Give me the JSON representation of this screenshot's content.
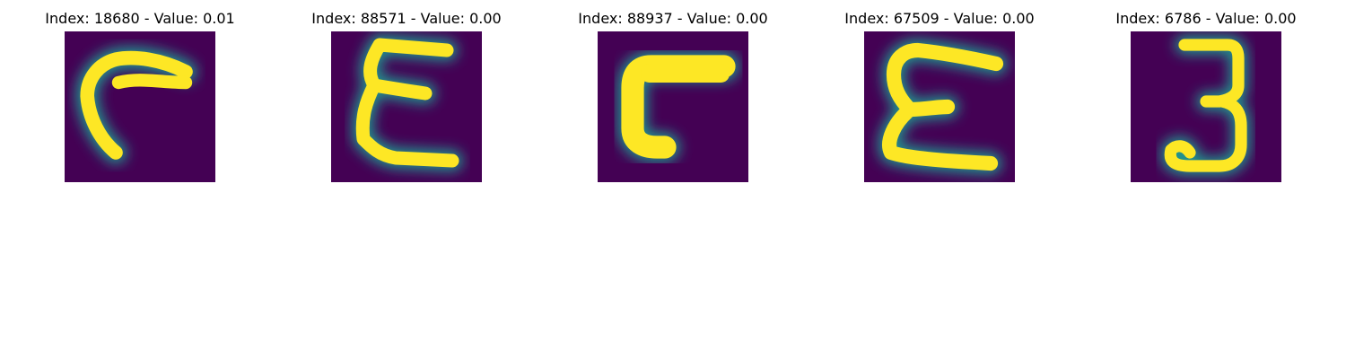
{
  "figure": {
    "background_color": "#440154",
    "foreground_color": "#fde725",
    "panels": [
      {
        "title": "Index: 18680 - Value: 0.01",
        "glyph": "curved stroke"
      },
      {
        "title": "Index: 88571 - Value: 0.00",
        "glyph": "epsilon-like"
      },
      {
        "title": "Index: 88937 - Value: 0.00",
        "glyph": "L-shape"
      },
      {
        "title": "Index: 67509 - Value: 0.00",
        "glyph": "E-like"
      },
      {
        "title": "Index: 6786 - Value: 0.00",
        "glyph": "3"
      }
    ]
  }
}
